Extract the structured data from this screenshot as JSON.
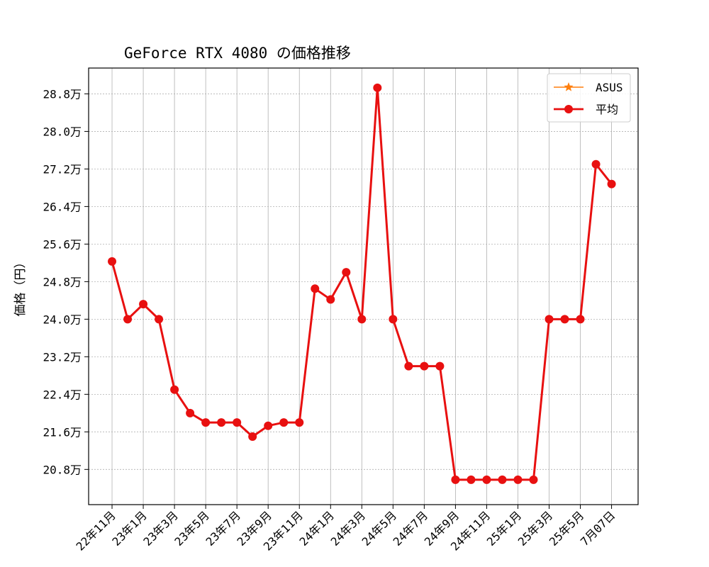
{
  "chart_data": {
    "type": "line",
    "title": "GeForce RTX 4080 の価格推移",
    "xlabel": "",
    "ylabel": "価格（円）",
    "ylim": [
      20.05,
      29.35
    ],
    "y_unit_suffix": "万",
    "y_ticks": [
      20.8,
      21.6,
      22.4,
      23.2,
      24.0,
      24.8,
      25.6,
      26.4,
      27.2,
      28.0,
      28.8
    ],
    "x_tick_labels": [
      "22年11月",
      "23年1月",
      "23年3月",
      "23年5月",
      "23年7月",
      "23年9月",
      "23年11月",
      "24年1月",
      "24年3月",
      "24年5月",
      "24年7月",
      "24年9月",
      "24年11月",
      "25年1月",
      "25年3月",
      "25年5月",
      "7月07日"
    ],
    "x_tick_positions": [
      0,
      2,
      4,
      6,
      8,
      10,
      12,
      14,
      16,
      18,
      20,
      22,
      24,
      26,
      28,
      30,
      32
    ],
    "grid": true,
    "legend_position": "upper-right",
    "series": [
      {
        "name": "ASUS",
        "color": "#ff7f0e",
        "marker": "star",
        "x": [],
        "y": []
      },
      {
        "name": "平均",
        "color": "#e81010",
        "marker": "circle",
        "x": [
          0,
          1,
          2,
          3,
          4,
          5,
          6,
          7,
          8,
          9,
          10,
          11,
          12,
          13,
          14,
          15,
          16,
          17,
          18,
          19,
          20,
          21,
          22,
          23,
          24,
          25,
          26,
          27,
          28,
          29,
          30,
          31,
          32
        ],
        "y": [
          25.23,
          24.0,
          24.32,
          24.0,
          22.5,
          22.0,
          21.8,
          21.8,
          21.8,
          21.5,
          21.73,
          21.8,
          21.8,
          24.65,
          24.42,
          25.0,
          24.0,
          28.93,
          24.0,
          23.0,
          23.0,
          23.0,
          20.58,
          20.58,
          20.58,
          20.58,
          20.58,
          20.58,
          24.0,
          24.0,
          24.0,
          27.3,
          26.88
        ]
      }
    ]
  }
}
